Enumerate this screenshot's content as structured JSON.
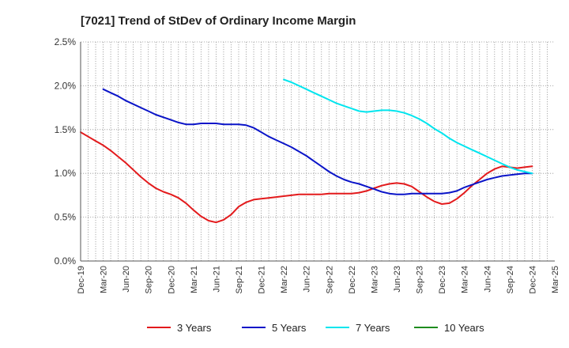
{
  "chart_data": {
    "type": "line",
    "title": "[7021]  Trend of StDev of Ordinary Income Margin",
    "xlabel": "",
    "ylabel": "",
    "ylim": [
      0,
      2.5
    ],
    "y_ticks": [
      0,
      0.5,
      1.0,
      1.5,
      2.0,
      2.5
    ],
    "y_tick_labels": [
      "0.0%",
      "0.5%",
      "1.0%",
      "1.5%",
      "2.0%",
      "2.5%"
    ],
    "x_tick_labels": [
      "Dec-19",
      "Mar-20",
      "Jun-20",
      "Sep-20",
      "Dec-20",
      "Mar-21",
      "Jun-21",
      "Sep-21",
      "Dec-21",
      "Mar-22",
      "Jun-22",
      "Sep-22",
      "Dec-22",
      "Mar-23",
      "Jun-23",
      "Sep-23",
      "Dec-23",
      "Mar-24",
      "Jun-24",
      "Sep-24",
      "Dec-24",
      "Mar-25"
    ],
    "grid": true,
    "legend_position": "bottom",
    "series": [
      {
        "name": "3 Years",
        "color": "#e31a1c",
        "points": [
          [
            "Dec-19",
            1.47
          ],
          [
            "Jan-20",
            1.42
          ],
          [
            "Feb-20",
            1.37
          ],
          [
            "Mar-20",
            1.32
          ],
          [
            "Apr-20",
            1.26
          ],
          [
            "May-20",
            1.19
          ],
          [
            "Jun-20",
            1.12
          ],
          [
            "Jul-20",
            1.04
          ],
          [
            "Aug-20",
            0.96
          ],
          [
            "Sep-20",
            0.89
          ],
          [
            "Oct-20",
            0.83
          ],
          [
            "Nov-20",
            0.79
          ],
          [
            "Dec-20",
            0.76
          ],
          [
            "Jan-21",
            0.72
          ],
          [
            "Feb-21",
            0.66
          ],
          [
            "Mar-21",
            0.58
          ],
          [
            "Apr-21",
            0.51
          ],
          [
            "May-21",
            0.46
          ],
          [
            "Jun-21",
            0.44
          ],
          [
            "Jul-21",
            0.47
          ],
          [
            "Aug-21",
            0.53
          ],
          [
            "Sep-21",
            0.62
          ],
          [
            "Oct-21",
            0.67
          ],
          [
            "Nov-21",
            0.7
          ],
          [
            "Dec-21",
            0.71
          ],
          [
            "Jan-22",
            0.72
          ],
          [
            "Feb-22",
            0.73
          ],
          [
            "Mar-22",
            0.74
          ],
          [
            "Apr-22",
            0.75
          ],
          [
            "May-22",
            0.76
          ],
          [
            "Jun-22",
            0.76
          ],
          [
            "Jul-22",
            0.76
          ],
          [
            "Aug-22",
            0.76
          ],
          [
            "Sep-22",
            0.77
          ],
          [
            "Oct-22",
            0.77
          ],
          [
            "Nov-22",
            0.77
          ],
          [
            "Dec-22",
            0.77
          ],
          [
            "Jan-23",
            0.78
          ],
          [
            "Feb-23",
            0.8
          ],
          [
            "Mar-23",
            0.83
          ],
          [
            "Apr-23",
            0.86
          ],
          [
            "May-23",
            0.88
          ],
          [
            "Jun-23",
            0.89
          ],
          [
            "Jul-23",
            0.88
          ],
          [
            "Aug-23",
            0.85
          ],
          [
            "Sep-23",
            0.79
          ],
          [
            "Oct-23",
            0.73
          ],
          [
            "Nov-23",
            0.68
          ],
          [
            "Dec-23",
            0.65
          ],
          [
            "Jan-24",
            0.66
          ],
          [
            "Feb-24",
            0.71
          ],
          [
            "Mar-24",
            0.78
          ],
          [
            "Apr-24",
            0.86
          ],
          [
            "May-24",
            0.93
          ],
          [
            "Jun-24",
            1.0
          ],
          [
            "Jul-24",
            1.05
          ],
          [
            "Aug-24",
            1.08
          ],
          [
            "Sep-24",
            1.07
          ],
          [
            "Oct-24",
            1.06
          ],
          [
            "Nov-24",
            1.07
          ],
          [
            "Dec-24",
            1.08
          ]
        ]
      },
      {
        "name": "5 Years",
        "color": "#0a14c8",
        "points": [
          [
            "Mar-20",
            1.96
          ],
          [
            "Apr-20",
            1.92
          ],
          [
            "May-20",
            1.88
          ],
          [
            "Jun-20",
            1.83
          ],
          [
            "Jul-20",
            1.79
          ],
          [
            "Aug-20",
            1.75
          ],
          [
            "Sep-20",
            1.71
          ],
          [
            "Oct-20",
            1.67
          ],
          [
            "Nov-20",
            1.64
          ],
          [
            "Dec-20",
            1.61
          ],
          [
            "Jan-21",
            1.58
          ],
          [
            "Feb-21",
            1.56
          ],
          [
            "Mar-21",
            1.56
          ],
          [
            "Apr-21",
            1.57
          ],
          [
            "May-21",
            1.57
          ],
          [
            "Jun-21",
            1.57
          ],
          [
            "Jul-21",
            1.56
          ],
          [
            "Aug-21",
            1.56
          ],
          [
            "Sep-21",
            1.56
          ],
          [
            "Oct-21",
            1.55
          ],
          [
            "Nov-21",
            1.52
          ],
          [
            "Dec-21",
            1.47
          ],
          [
            "Jan-22",
            1.42
          ],
          [
            "Feb-22",
            1.38
          ],
          [
            "Mar-22",
            1.34
          ],
          [
            "Apr-22",
            1.3
          ],
          [
            "May-22",
            1.25
          ],
          [
            "Jun-22",
            1.2
          ],
          [
            "Jul-22",
            1.14
          ],
          [
            "Aug-22",
            1.08
          ],
          [
            "Sep-22",
            1.02
          ],
          [
            "Oct-22",
            0.97
          ],
          [
            "Nov-22",
            0.93
          ],
          [
            "Dec-22",
            0.9
          ],
          [
            "Jan-23",
            0.88
          ],
          [
            "Feb-23",
            0.85
          ],
          [
            "Mar-23",
            0.82
          ],
          [
            "Apr-23",
            0.79
          ],
          [
            "May-23",
            0.77
          ],
          [
            "Jun-23",
            0.76
          ],
          [
            "Jul-23",
            0.76
          ],
          [
            "Aug-23",
            0.77
          ],
          [
            "Sep-23",
            0.77
          ],
          [
            "Oct-23",
            0.77
          ],
          [
            "Nov-23",
            0.77
          ],
          [
            "Dec-23",
            0.77
          ],
          [
            "Jan-24",
            0.78
          ],
          [
            "Feb-24",
            0.8
          ],
          [
            "Mar-24",
            0.84
          ],
          [
            "Apr-24",
            0.87
          ],
          [
            "May-24",
            0.9
          ],
          [
            "Jun-24",
            0.93
          ],
          [
            "Jul-24",
            0.95
          ],
          [
            "Aug-24",
            0.97
          ],
          [
            "Sep-24",
            0.98
          ],
          [
            "Oct-24",
            0.99
          ],
          [
            "Nov-24",
            1.0
          ],
          [
            "Dec-24",
            1.0
          ]
        ]
      },
      {
        "name": "7 Years",
        "color": "#00e5ee",
        "points": [
          [
            "Mar-22",
            2.07
          ],
          [
            "Apr-22",
            2.04
          ],
          [
            "May-22",
            2.0
          ],
          [
            "Jun-22",
            1.96
          ],
          [
            "Jul-22",
            1.92
          ],
          [
            "Aug-22",
            1.88
          ],
          [
            "Sep-22",
            1.84
          ],
          [
            "Oct-22",
            1.8
          ],
          [
            "Nov-22",
            1.77
          ],
          [
            "Dec-22",
            1.74
          ],
          [
            "Jan-23",
            1.71
          ],
          [
            "Feb-23",
            1.7
          ],
          [
            "Mar-23",
            1.71
          ],
          [
            "Apr-23",
            1.72
          ],
          [
            "May-23",
            1.72
          ],
          [
            "Jun-23",
            1.71
          ],
          [
            "Jul-23",
            1.69
          ],
          [
            "Aug-23",
            1.66
          ],
          [
            "Sep-23",
            1.62
          ],
          [
            "Oct-23",
            1.57
          ],
          [
            "Nov-23",
            1.51
          ],
          [
            "Dec-23",
            1.46
          ],
          [
            "Jan-24",
            1.4
          ],
          [
            "Feb-24",
            1.35
          ],
          [
            "Mar-24",
            1.31
          ],
          [
            "Apr-24",
            1.27
          ],
          [
            "May-24",
            1.23
          ],
          [
            "Jun-24",
            1.19
          ],
          [
            "Jul-24",
            1.15
          ],
          [
            "Aug-24",
            1.11
          ],
          [
            "Sep-24",
            1.07
          ],
          [
            "Oct-24",
            1.04
          ],
          [
            "Nov-24",
            1.02
          ],
          [
            "Dec-24",
            1.0
          ]
        ]
      },
      {
        "name": "10 Years",
        "color": "#1e8c1e",
        "points": []
      }
    ]
  }
}
